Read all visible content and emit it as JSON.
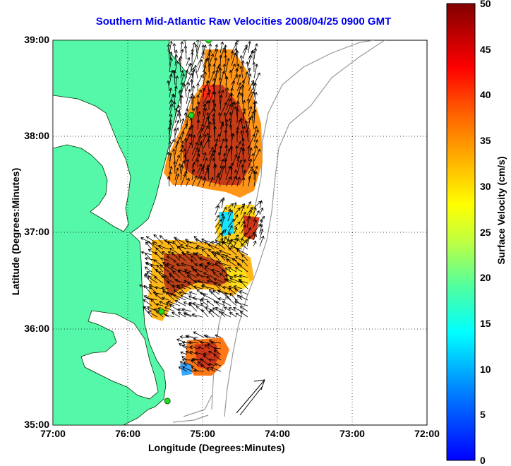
{
  "title": "Southern Mid-Atlantic Raw Velocities 2008/04/25 0900 GMT",
  "x_axis": {
    "label": "Longitude (Degrees:Minutes)",
    "ticks": [
      "77:00",
      "76:00",
      "75:00",
      "74:00",
      "73:00",
      "72:00"
    ]
  },
  "y_axis": {
    "label": "Latitude (Degrees:Minutes)",
    "ticks": [
      "39:00",
      "38:00",
      "37:00",
      "36:00",
      "35:00"
    ]
  },
  "colorbar": {
    "label": "Surface Velocity (cm/s)",
    "ticks": [
      "50",
      "45",
      "40",
      "35",
      "30",
      "25",
      "20",
      "15",
      "10",
      "5",
      "0"
    ],
    "min": 0,
    "max": 50
  },
  "colors": {
    "land": "#55f7a8",
    "bathymetry": "#999999",
    "title": "#0000ee",
    "station": "#22dd22"
  },
  "stations": [
    {
      "lon": -74.92,
      "lat": 39.0
    },
    {
      "lon": -75.15,
      "lat": 38.22
    },
    {
      "lon": -75.55,
      "lat": 36.18
    },
    {
      "lon": -75.47,
      "lat": 35.25
    }
  ],
  "scale_arrow": {
    "speed_cm_s": 50,
    "direction_deg": 45
  }
}
